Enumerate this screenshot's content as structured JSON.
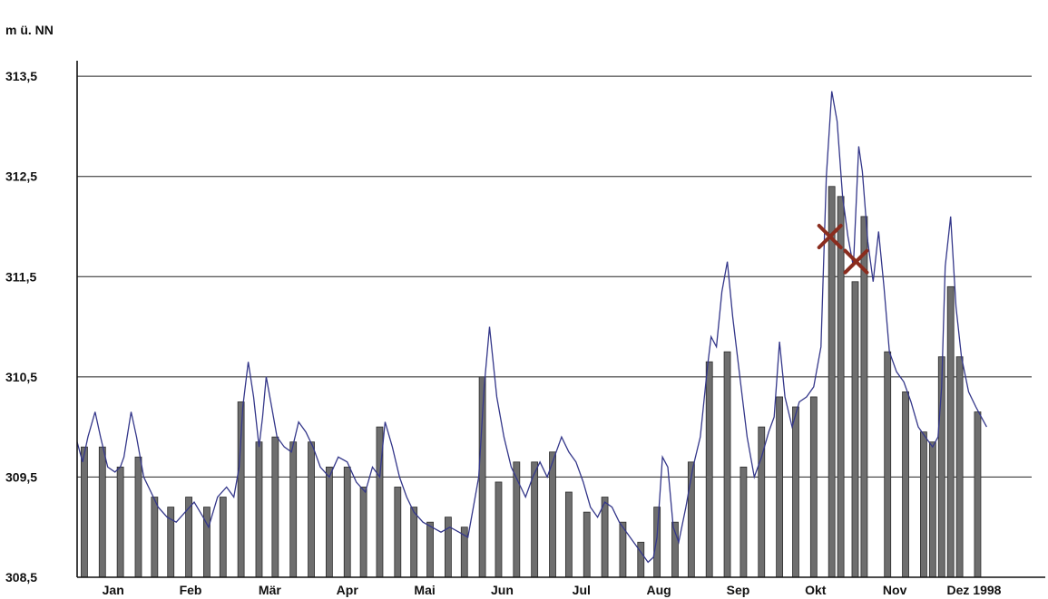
{
  "chart_data": {
    "type": "bar",
    "title": "",
    "xlabel": "",
    "ylabel": "m ü. NN",
    "ylim": [
      308.5,
      313.7
    ],
    "yticks": [
      "308,5",
      "309,5",
      "310,5",
      "311,5",
      "312,5",
      "313,5"
    ],
    "ytick_values": [
      308.5,
      309.5,
      310.5,
      311.5,
      312.5,
      313.5
    ],
    "grid": true,
    "x_range": [
      0,
      53
    ],
    "month_labels": [
      {
        "label": "Jan",
        "pos": 2.0
      },
      {
        "label": "Feb",
        "pos": 6.3
      },
      {
        "label": "Mär",
        "pos": 10.7
      },
      {
        "label": "Apr",
        "pos": 15.0
      },
      {
        "label": "Mai",
        "pos": 19.3
      },
      {
        "label": "Jun",
        "pos": 23.6
      },
      {
        "label": "Jul",
        "pos": 28.0
      },
      {
        "label": "Aug",
        "pos": 32.3
      },
      {
        "label": "Sep",
        "pos": 36.7
      },
      {
        "label": "Okt",
        "pos": 41.0
      },
      {
        "label": "Nov",
        "pos": 45.4
      },
      {
        "label": "Dez 1998",
        "pos": 49.8
      }
    ],
    "bars": [
      {
        "x": 0.4,
        "v": 309.8
      },
      {
        "x": 1.4,
        "v": 309.8
      },
      {
        "x": 2.4,
        "v": 309.6
      },
      {
        "x": 3.4,
        "v": 309.7
      },
      {
        "x": 4.3,
        "v": 309.3
      },
      {
        "x": 5.2,
        "v": 309.2
      },
      {
        "x": 6.2,
        "v": 309.3
      },
      {
        "x": 7.2,
        "v": 309.2
      },
      {
        "x": 8.1,
        "v": 309.3
      },
      {
        "x": 9.1,
        "v": 310.25
      },
      {
        "x": 10.1,
        "v": 309.85
      },
      {
        "x": 11.0,
        "v": 309.9
      },
      {
        "x": 12.0,
        "v": 309.85
      },
      {
        "x": 13.0,
        "v": 309.85
      },
      {
        "x": 14.0,
        "v": 309.6
      },
      {
        "x": 15.0,
        "v": 309.6
      },
      {
        "x": 15.9,
        "v": 309.4
      },
      {
        "x": 16.8,
        "v": 310.0
      },
      {
        "x": 17.8,
        "v": 309.4
      },
      {
        "x": 18.7,
        "v": 309.2
      },
      {
        "x": 19.6,
        "v": 309.05
      },
      {
        "x": 20.6,
        "v": 309.1
      },
      {
        "x": 21.5,
        "v": 309.0
      },
      {
        "x": 22.5,
        "v": 310.5
      },
      {
        "x": 23.4,
        "v": 309.45
      },
      {
        "x": 24.4,
        "v": 309.65
      },
      {
        "x": 25.4,
        "v": 309.65
      },
      {
        "x": 26.4,
        "v": 309.75
      },
      {
        "x": 27.3,
        "v": 309.35
      },
      {
        "x": 28.3,
        "v": 309.15
      },
      {
        "x": 29.3,
        "v": 309.3
      },
      {
        "x": 30.3,
        "v": 309.05
      },
      {
        "x": 31.3,
        "v": 308.85
      },
      {
        "x": 32.2,
        "v": 309.2
      },
      {
        "x": 33.2,
        "v": 309.05
      },
      {
        "x": 34.1,
        "v": 309.65
      },
      {
        "x": 35.1,
        "v": 310.65
      },
      {
        "x": 36.1,
        "v": 310.75
      },
      {
        "x": 37.0,
        "v": 309.6
      },
      {
        "x": 38.0,
        "v": 310.0
      },
      {
        "x": 39.0,
        "v": 310.3
      },
      {
        "x": 39.9,
        "v": 310.2
      },
      {
        "x": 40.9,
        "v": 310.3
      },
      {
        "x": 41.9,
        "v": 312.4
      },
      {
        "x": 42.4,
        "v": 312.3
      },
      {
        "x": 43.2,
        "v": 311.45
      },
      {
        "x": 43.7,
        "v": 312.1
      },
      {
        "x": 45.0,
        "v": 310.75
      },
      {
        "x": 46.0,
        "v": 310.35
      },
      {
        "x": 47.0,
        "v": 309.95
      },
      {
        "x": 47.5,
        "v": 309.85
      },
      {
        "x": 48.0,
        "v": 310.7
      },
      {
        "x": 48.5,
        "v": 311.4
      },
      {
        "x": 49.0,
        "v": 310.7
      },
      {
        "x": 50.0,
        "v": 310.15
      }
    ],
    "series": [
      {
        "type": "line",
        "x": [
          0.0,
          0.3,
          0.6,
          1.0,
          1.3,
          1.7,
          2.1,
          2.4,
          2.6,
          3.0,
          3.3,
          3.7,
          4.1,
          4.5,
          5.0,
          5.5,
          6.0,
          6.5,
          7.0,
          7.3,
          7.8,
          8.3,
          8.7,
          9.0,
          9.2,
          9.5,
          9.8,
          10.1,
          10.3,
          10.5,
          10.8,
          11.1,
          11.5,
          11.9,
          12.3,
          12.7,
          13.1,
          13.5,
          14.0,
          14.5,
          15.0,
          15.5,
          16.0,
          16.4,
          16.8,
          17.1,
          17.5,
          17.9,
          18.3,
          18.7,
          19.2,
          19.7,
          20.2,
          20.7,
          21.2,
          21.7,
          22.0,
          22.3,
          22.6,
          22.9,
          23.3,
          23.7,
          24.1,
          24.5,
          24.9,
          25.3,
          25.7,
          26.1,
          26.5,
          26.9,
          27.3,
          27.7,
          28.1,
          28.5,
          28.9,
          29.3,
          29.7,
          30.1,
          30.5,
          30.9,
          31.3,
          31.7,
          32.0,
          32.2,
          32.5,
          32.8,
          33.1,
          33.4,
          33.8,
          34.2,
          34.6,
          35.0,
          35.2,
          35.5,
          35.8,
          36.1,
          36.4,
          36.8,
          37.2,
          37.6,
          38.0,
          38.4,
          38.7,
          39.0,
          39.3,
          39.7,
          40.1,
          40.5,
          40.9,
          41.3,
          41.6,
          41.9,
          42.2,
          42.5,
          42.8,
          43.1,
          43.4,
          43.6,
          43.9,
          44.2,
          44.5,
          44.8,
          45.1,
          45.5,
          45.9,
          46.3,
          46.7,
          47.1,
          47.5,
          47.8,
          48.0,
          48.2,
          48.5,
          48.8,
          49.1,
          49.5,
          49.9,
          50.2,
          50.5
        ],
        "y": [
          309.85,
          309.65,
          309.9,
          310.15,
          309.9,
          309.6,
          309.55,
          309.6,
          309.7,
          310.15,
          309.9,
          309.5,
          309.35,
          309.2,
          309.1,
          309.05,
          309.15,
          309.25,
          309.1,
          309.0,
          309.3,
          309.4,
          309.3,
          309.6,
          310.2,
          310.65,
          310.3,
          309.8,
          310.1,
          310.5,
          310.2,
          309.9,
          309.8,
          309.75,
          310.05,
          309.95,
          309.8,
          309.6,
          309.5,
          309.7,
          309.65,
          309.45,
          309.35,
          309.6,
          309.5,
          310.05,
          309.8,
          309.5,
          309.3,
          309.15,
          309.05,
          309.0,
          308.95,
          309.0,
          308.95,
          308.9,
          309.2,
          309.5,
          310.4,
          311.0,
          310.3,
          309.9,
          309.6,
          309.45,
          309.3,
          309.5,
          309.65,
          309.5,
          309.7,
          309.9,
          309.75,
          309.65,
          309.45,
          309.2,
          309.1,
          309.25,
          309.2,
          309.05,
          308.95,
          308.85,
          308.75,
          308.65,
          308.7,
          308.9,
          309.7,
          309.6,
          309.0,
          308.85,
          309.2,
          309.6,
          309.9,
          310.6,
          310.9,
          310.8,
          311.35,
          311.65,
          311.1,
          310.5,
          309.9,
          309.5,
          309.7,
          309.95,
          310.1,
          310.85,
          310.3,
          310.0,
          310.25,
          310.3,
          310.4,
          310.8,
          312.5,
          313.35,
          313.05,
          312.3,
          311.9,
          311.6,
          312.8,
          312.55,
          311.85,
          311.45,
          311.95,
          311.4,
          310.75,
          310.55,
          310.45,
          310.25,
          310.0,
          309.9,
          309.8,
          309.9,
          310.4,
          311.6,
          312.1,
          311.2,
          310.7,
          310.35,
          310.2,
          310.1,
          310.0
        ]
      }
    ],
    "markers": [
      {
        "x": 41.8,
        "y": 311.9,
        "shape": "x"
      },
      {
        "x": 43.25,
        "y": 311.65,
        "shape": "x"
      }
    ],
    "colors": {
      "bars": "#6e6e6e",
      "line": "#34378a",
      "markers": "#8a2c1e"
    }
  }
}
